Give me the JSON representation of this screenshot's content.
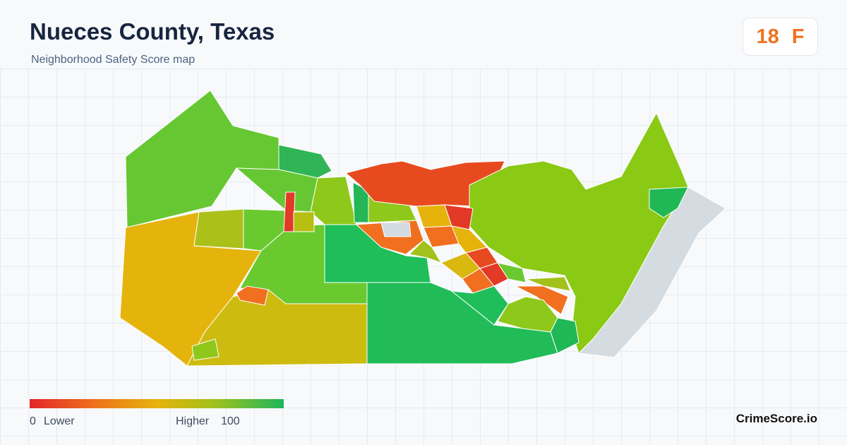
{
  "header": {
    "title": "Nueces County, Texas",
    "subtitle": "Neighborhood Safety Score map"
  },
  "score": {
    "value": 18,
    "grade": "F"
  },
  "legend": {
    "min": 0,
    "min_label": "Lower",
    "max_label": "Higher",
    "max": 100
  },
  "brand": "CrimeScore.io"
}
